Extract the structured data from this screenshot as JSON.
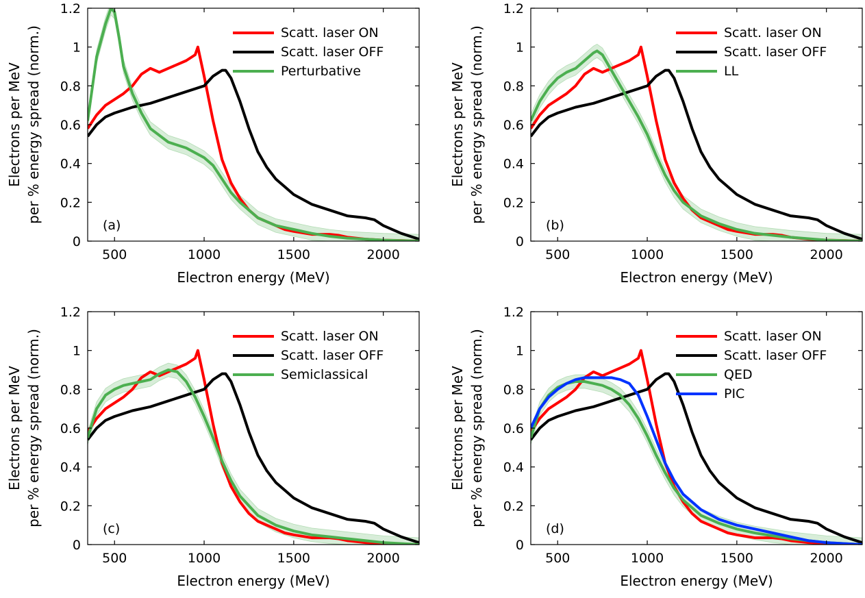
{
  "chart_data": [
    {
      "type": "line",
      "panel_label": "(a)",
      "xlabel": "Electron energy (MeV)",
      "ylabel": [
        "Electrons per MeV",
        "per % energy spread (norm.)"
      ],
      "xlim": [
        350,
        2200
      ],
      "ylim": [
        0,
        1.2
      ],
      "xticks": [
        500,
        1000,
        1500,
        2000
      ],
      "yticks": [
        0,
        0.2,
        0.4,
        0.6,
        0.8,
        1,
        1.2
      ],
      "legend_position": "top-right",
      "series": [
        {
          "name": "Scatt. laser ON",
          "color": "#ff0000",
          "x": [
            350,
            400,
            450,
            500,
            550,
            600,
            650,
            700,
            750,
            800,
            850,
            900,
            950,
            965,
            1000,
            1050,
            1100,
            1150,
            1200,
            1250,
            1300,
            1350,
            1400,
            1450,
            1500,
            1600,
            1700,
            1750,
            1800,
            1900,
            2000,
            2100,
            2200
          ],
          "y": [
            0.58,
            0.65,
            0.7,
            0.73,
            0.76,
            0.8,
            0.86,
            0.89,
            0.87,
            0.89,
            0.91,
            0.93,
            0.96,
            1.0,
            0.85,
            0.62,
            0.42,
            0.3,
            0.22,
            0.16,
            0.12,
            0.1,
            0.08,
            0.06,
            0.05,
            0.035,
            0.035,
            0.03,
            0.02,
            0.01,
            0.005,
            0.003,
            0.0
          ]
        },
        {
          "name": "Scatt. laser OFF",
          "color": "#000000",
          "x": [
            350,
            400,
            450,
            500,
            600,
            700,
            800,
            900,
            1000,
            1050,
            1100,
            1120,
            1150,
            1200,
            1250,
            1300,
            1350,
            1400,
            1450,
            1500,
            1600,
            1700,
            1800,
            1900,
            1950,
            2000,
            2100,
            2200
          ],
          "y": [
            0.54,
            0.6,
            0.64,
            0.66,
            0.69,
            0.71,
            0.74,
            0.77,
            0.8,
            0.85,
            0.88,
            0.88,
            0.84,
            0.72,
            0.58,
            0.46,
            0.38,
            0.32,
            0.28,
            0.24,
            0.19,
            0.16,
            0.13,
            0.12,
            0.11,
            0.08,
            0.04,
            0.01
          ]
        },
        {
          "name": "Perturbative",
          "color": "#4caf50",
          "x": [
            350,
            400,
            450,
            480,
            500,
            525,
            550,
            600,
            650,
            700,
            800,
            900,
            1000,
            1050,
            1100,
            1150,
            1200,
            1300,
            1400,
            1500,
            1600,
            1700,
            1800,
            2000,
            2200
          ],
          "y": [
            0.62,
            0.95,
            1.12,
            1.2,
            1.18,
            1.05,
            0.9,
            0.76,
            0.66,
            0.58,
            0.51,
            0.48,
            0.43,
            0.39,
            0.32,
            0.25,
            0.2,
            0.12,
            0.08,
            0.06,
            0.04,
            0.025,
            0.015,
            0.005,
            0.0
          ],
          "band": 0.035
        }
      ]
    },
    {
      "type": "line",
      "panel_label": "(b)",
      "xlabel": "Electron energy (MeV)",
      "ylabel": [
        "Electrons per MeV",
        "per % energy spread (norm.)"
      ],
      "xlim": [
        350,
        2200
      ],
      "ylim": [
        0,
        1.2
      ],
      "xticks": [
        500,
        1000,
        1500,
        2000
      ],
      "yticks": [
        0,
        0.2,
        0.4,
        0.6,
        0.8,
        1,
        1.2
      ],
      "legend_position": "top-right",
      "series": [
        {
          "name": "Scatt. laser ON",
          "color": "#ff0000",
          "x": [
            350,
            400,
            450,
            500,
            550,
            600,
            650,
            700,
            750,
            800,
            850,
            900,
            950,
            965,
            1000,
            1050,
            1100,
            1150,
            1200,
            1250,
            1300,
            1350,
            1400,
            1450,
            1500,
            1600,
            1700,
            1750,
            1800,
            1900,
            2000,
            2100,
            2200
          ],
          "y": [
            0.58,
            0.65,
            0.7,
            0.73,
            0.76,
            0.8,
            0.86,
            0.89,
            0.87,
            0.89,
            0.91,
            0.93,
            0.96,
            1.0,
            0.85,
            0.62,
            0.42,
            0.3,
            0.22,
            0.16,
            0.12,
            0.1,
            0.08,
            0.06,
            0.05,
            0.035,
            0.035,
            0.03,
            0.02,
            0.01,
            0.005,
            0.003,
            0.0
          ]
        },
        {
          "name": "Scatt. laser OFF",
          "color": "#000000",
          "x": [
            350,
            400,
            450,
            500,
            600,
            700,
            800,
            900,
            1000,
            1050,
            1100,
            1120,
            1150,
            1200,
            1250,
            1300,
            1350,
            1400,
            1450,
            1500,
            1600,
            1700,
            1800,
            1900,
            1950,
            2000,
            2100,
            2200
          ],
          "y": [
            0.54,
            0.6,
            0.64,
            0.66,
            0.69,
            0.71,
            0.74,
            0.77,
            0.8,
            0.85,
            0.88,
            0.88,
            0.84,
            0.72,
            0.58,
            0.46,
            0.38,
            0.32,
            0.28,
            0.24,
            0.19,
            0.16,
            0.13,
            0.12,
            0.11,
            0.08,
            0.04,
            0.01
          ]
        },
        {
          "name": "LL",
          "color": "#4caf50",
          "x": [
            350,
            400,
            450,
            500,
            550,
            600,
            650,
            700,
            720,
            750,
            800,
            850,
            900,
            950,
            1000,
            1050,
            1100,
            1150,
            1200,
            1300,
            1400,
            1500,
            1600,
            1700,
            1800,
            2000,
            2200
          ],
          "y": [
            0.62,
            0.72,
            0.79,
            0.84,
            0.87,
            0.89,
            0.93,
            0.97,
            0.98,
            0.96,
            0.88,
            0.8,
            0.72,
            0.64,
            0.55,
            0.44,
            0.34,
            0.26,
            0.2,
            0.13,
            0.09,
            0.06,
            0.04,
            0.03,
            0.02,
            0.005,
            0.0
          ],
          "band": 0.035
        }
      ]
    },
    {
      "type": "line",
      "panel_label": "(c)",
      "xlabel": "Electron energy (MeV)",
      "ylabel": [
        "Electrons per MeV",
        "per % energy spread (norm.)"
      ],
      "xlim": [
        350,
        2200
      ],
      "ylim": [
        0,
        1.2
      ],
      "xticks": [
        500,
        1000,
        1500,
        2000
      ],
      "yticks": [
        0,
        0.2,
        0.4,
        0.6,
        0.8,
        1,
        1.2
      ],
      "legend_position": "top-right",
      "series": [
        {
          "name": "Scatt. laser ON",
          "color": "#ff0000",
          "x": [
            350,
            400,
            450,
            500,
            550,
            600,
            650,
            700,
            750,
            800,
            850,
            900,
            950,
            965,
            1000,
            1050,
            1100,
            1150,
            1200,
            1250,
            1300,
            1350,
            1400,
            1450,
            1500,
            1600,
            1700,
            1750,
            1800,
            1900,
            2000,
            2100,
            2200
          ],
          "y": [
            0.58,
            0.65,
            0.7,
            0.73,
            0.76,
            0.8,
            0.86,
            0.89,
            0.87,
            0.89,
            0.91,
            0.93,
            0.96,
            1.0,
            0.85,
            0.62,
            0.42,
            0.3,
            0.22,
            0.16,
            0.12,
            0.1,
            0.08,
            0.06,
            0.05,
            0.035,
            0.035,
            0.03,
            0.02,
            0.01,
            0.005,
            0.003,
            0.0
          ]
        },
        {
          "name": "Scatt. laser OFF",
          "color": "#000000",
          "x": [
            350,
            400,
            450,
            500,
            600,
            700,
            800,
            900,
            1000,
            1050,
            1100,
            1120,
            1150,
            1200,
            1250,
            1300,
            1350,
            1400,
            1450,
            1500,
            1600,
            1700,
            1800,
            1900,
            1950,
            2000,
            2100,
            2200
          ],
          "y": [
            0.54,
            0.6,
            0.64,
            0.66,
            0.69,
            0.71,
            0.74,
            0.77,
            0.8,
            0.85,
            0.88,
            0.88,
            0.84,
            0.72,
            0.58,
            0.46,
            0.38,
            0.32,
            0.28,
            0.24,
            0.19,
            0.16,
            0.13,
            0.12,
            0.11,
            0.08,
            0.04,
            0.01
          ]
        },
        {
          "name": "Semiclassical",
          "color": "#4caf50",
          "x": [
            350,
            400,
            450,
            500,
            550,
            600,
            650,
            700,
            750,
            800,
            850,
            900,
            950,
            1000,
            1050,
            1100,
            1150,
            1200,
            1300,
            1400,
            1500,
            1600,
            1700,
            1800,
            2000,
            2200
          ],
          "y": [
            0.55,
            0.7,
            0.77,
            0.8,
            0.82,
            0.83,
            0.84,
            0.85,
            0.88,
            0.9,
            0.89,
            0.84,
            0.76,
            0.66,
            0.55,
            0.43,
            0.33,
            0.25,
            0.15,
            0.1,
            0.07,
            0.05,
            0.04,
            0.03,
            0.01,
            0.0
          ],
          "band": 0.035
        }
      ]
    },
    {
      "type": "line",
      "panel_label": "(d)",
      "xlabel": "Electron energy (MeV)",
      "ylabel": [
        "Electrons per MeV",
        "per % energy spread (norm.)"
      ],
      "xlim": [
        350,
        2200
      ],
      "ylim": [
        0,
        1.2
      ],
      "xticks": [
        500,
        1000,
        1500,
        2000
      ],
      "yticks": [
        0,
        0.2,
        0.4,
        0.6,
        0.8,
        1,
        1.2
      ],
      "legend_position": "top-right",
      "series": [
        {
          "name": "Scatt. laser ON",
          "color": "#ff0000",
          "x": [
            350,
            400,
            450,
            500,
            550,
            600,
            650,
            700,
            750,
            800,
            850,
            900,
            950,
            965,
            1000,
            1050,
            1100,
            1150,
            1200,
            1250,
            1300,
            1350,
            1400,
            1450,
            1500,
            1600,
            1700,
            1750,
            1800,
            1900,
            2000,
            2100,
            2200
          ],
          "y": [
            0.58,
            0.65,
            0.7,
            0.73,
            0.76,
            0.8,
            0.86,
            0.89,
            0.87,
            0.89,
            0.91,
            0.93,
            0.96,
            1.0,
            0.85,
            0.62,
            0.42,
            0.3,
            0.22,
            0.16,
            0.12,
            0.1,
            0.08,
            0.06,
            0.05,
            0.035,
            0.035,
            0.03,
            0.02,
            0.01,
            0.005,
            0.003,
            0.0
          ]
        },
        {
          "name": "Scatt. laser OFF",
          "color": "#000000",
          "x": [
            350,
            400,
            450,
            500,
            600,
            700,
            800,
            900,
            1000,
            1050,
            1100,
            1120,
            1150,
            1200,
            1250,
            1300,
            1350,
            1400,
            1450,
            1500,
            1600,
            1700,
            1800,
            1900,
            1950,
            2000,
            2100,
            2200
          ],
          "y": [
            0.54,
            0.6,
            0.64,
            0.66,
            0.69,
            0.71,
            0.74,
            0.77,
            0.8,
            0.85,
            0.88,
            0.88,
            0.84,
            0.72,
            0.58,
            0.46,
            0.38,
            0.32,
            0.28,
            0.24,
            0.19,
            0.16,
            0.13,
            0.12,
            0.11,
            0.08,
            0.04,
            0.01
          ]
        },
        {
          "name": "QED",
          "color": "#4caf50",
          "x": [
            350,
            400,
            450,
            500,
            550,
            600,
            650,
            700,
            750,
            800,
            850,
            900,
            950,
            1000,
            1050,
            1100,
            1150,
            1200,
            1300,
            1400,
            1500,
            1600,
            1700,
            1800,
            2000,
            2200
          ],
          "y": [
            0.55,
            0.7,
            0.77,
            0.81,
            0.83,
            0.84,
            0.84,
            0.83,
            0.82,
            0.8,
            0.77,
            0.72,
            0.65,
            0.56,
            0.46,
            0.37,
            0.29,
            0.23,
            0.15,
            0.11,
            0.08,
            0.06,
            0.045,
            0.03,
            0.01,
            0.0
          ],
          "band": 0.035
        },
        {
          "name": "PIC",
          "color": "#0033ff",
          "x": [
            350,
            400,
            450,
            500,
            550,
            600,
            650,
            700,
            750,
            800,
            850,
            900,
            950,
            1000,
            1050,
            1100,
            1150,
            1200,
            1300,
            1400,
            1500,
            1600,
            1700,
            1800,
            1900,
            2000,
            2100,
            2200
          ],
          "y": [
            0.6,
            0.7,
            0.76,
            0.8,
            0.83,
            0.85,
            0.86,
            0.86,
            0.86,
            0.86,
            0.85,
            0.83,
            0.77,
            0.66,
            0.54,
            0.42,
            0.33,
            0.26,
            0.18,
            0.13,
            0.1,
            0.08,
            0.06,
            0.04,
            0.02,
            0.01,
            0.005,
            0.0
          ]
        }
      ]
    }
  ]
}
